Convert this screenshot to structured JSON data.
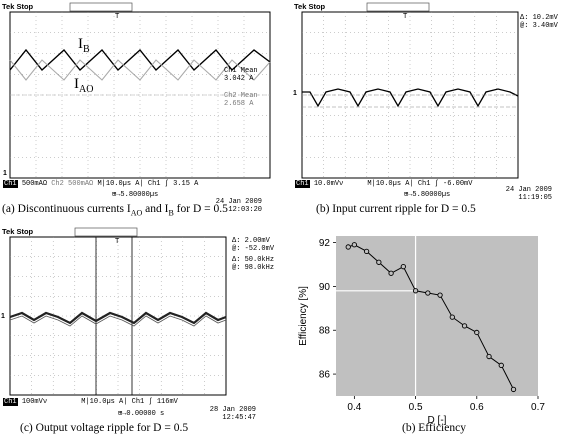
{
  "panels": {
    "a": {
      "tek_label": "Tek Stop",
      "trace_label_b_main": "I",
      "trace_label_b_sub": "B",
      "trace_label_ao_main": "I",
      "trace_label_ao_sub": "AO",
      "ch1_mean_label": "Ch1 Mean",
      "ch1_mean_value": "3.042 A",
      "ch2_mean_label": "Ch2 Mean",
      "ch2_mean_value": "2.658 A",
      "status_ch1": "Ch1",
      "status_ch1_scale": "500mAΩ",
      "status_ch2": "Ch2",
      "status_ch2_scale": "500mAΩ",
      "status_time": "M|10.0µs",
      "status_trig": "A| Ch1 ʃ",
      "status_level": "3.15 A",
      "position": "5.80000µs",
      "date": "24 Jan  2009",
      "time": "12:03:20",
      "caption_pre": "(a) Discontinuous currents I",
      "caption_sub1": "AO",
      "caption_mid": " and I",
      "caption_sub2": "B",
      "caption_post": " for D = 0.5",
      "marker_1": "1",
      "marker_t": "T"
    },
    "b": {
      "tek_label": "Tek Stop",
      "delta_label": "Δ:",
      "delta_value": "10.2mV",
      "at_label": "@:",
      "at_value": "3.40mV",
      "status_ch1": "Ch1",
      "status_ch1_scale": "10.0mVν",
      "status_time": "M|10.0µs",
      "status_trig": "A| Ch1 ʃ -6.00mV",
      "position": "5.80000µs",
      "date": "24 Jan  2009",
      "time": "11:19:05",
      "caption": "(b) Input current ripple for D = 0.5",
      "marker_1": "1",
      "marker_t": "T"
    },
    "c": {
      "tek_label": "Tek Stop",
      "delta_label": "Δ:",
      "delta_value": "2.00mV",
      "at_label": "@:",
      "at_value": "-52.0mV",
      "delta2_label": "Δ:",
      "delta2_value": "50.0kHz",
      "at2_label": "@:",
      "at2_value": "98.0kHz",
      "status_ch1": "Ch1",
      "status_ch1_scale": "100mVν",
      "status_time": "M|10.0µs",
      "status_trig": "A| Ch1 ʃ",
      "status_level": "116mV",
      "position": "0.00000 s",
      "date": "28 Jan  2009",
      "time": "12:45:47",
      "caption": "(c) Output voltage ripple for D = 0.5",
      "marker_1": "1",
      "marker_t": "T"
    },
    "d": {
      "caption": "(b) Efficiency"
    }
  },
  "chart_data": {
    "type": "line",
    "title": "",
    "xlabel": "D [-]",
    "ylabel": "Efficiency [%]",
    "xlim": [
      0.37,
      0.7
    ],
    "ylim": [
      85,
      92.3
    ],
    "xticks": [
      0.4,
      0.5,
      0.6,
      0.7
    ],
    "yticks": [
      86,
      88,
      90,
      92
    ],
    "x": [
      0.39,
      0.4,
      0.42,
      0.44,
      0.46,
      0.48,
      0.5,
      0.52,
      0.54,
      0.56,
      0.58,
      0.6,
      0.62,
      0.64,
      0.66
    ],
    "y": [
      91.8,
      91.9,
      91.6,
      91.1,
      90.6,
      90.9,
      89.8,
      89.7,
      89.6,
      88.6,
      88.2,
      87.9,
      86.8,
      86.4,
      85.3
    ],
    "reference_x": 0.5,
    "reference_y": 89.8,
    "background_color": "#c0c0c0",
    "line_color": "#000000",
    "grid": false
  }
}
